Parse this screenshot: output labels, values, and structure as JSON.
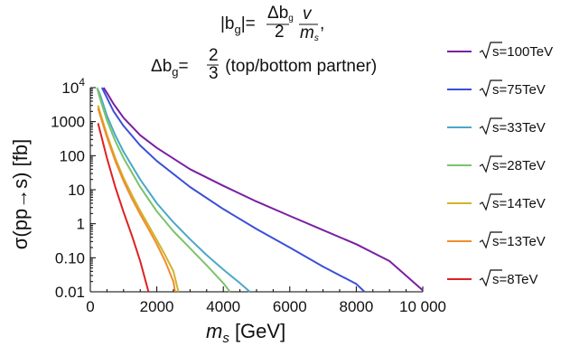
{
  "chart_data": {
    "type": "line",
    "title_line1": "|b_g|=Δb_g/2 · v/m_s ,",
    "title_line2": "Δb_g=2/3 (top/bottom partner)",
    "title_parts": {
      "abs_b": "|b",
      "sub_g": "g",
      "abs_close_eq": "|=",
      "frac1_num": "Δb",
      "frac1_num_sub": "g",
      "frac1_den": "2",
      "frac2_num": "v",
      "frac2_den": "m",
      "frac2_den_sub": "s",
      "comma": ",",
      "line2_delta": "Δb",
      "line2_sub": "g",
      "line2_eq": "=",
      "line2_num": "2",
      "line2_den": "3",
      "line2_rest": " (top/bottom partner)"
    },
    "xlabel": "m",
    "xlabel_sub": "s",
    "xlabel_unit": " [GeV]",
    "ylabel": "σ(pp→s) [fb]",
    "xlim": [
      0,
      10000
    ],
    "ylim": [
      0.01,
      10000
    ],
    "yscale": "log",
    "x_ticks": [
      "0",
      "2000",
      "4000",
      "6000",
      "8000",
      "10 000"
    ],
    "y_ticks": [
      {
        "value": 10000,
        "base": "10",
        "exp": "4"
      },
      {
        "value": 1000,
        "label": "1000"
      },
      {
        "value": 100,
        "label": "100"
      },
      {
        "value": 10,
        "label": "10"
      },
      {
        "value": 1,
        "label": "1"
      },
      {
        "value": 0.1,
        "label": "0.10"
      },
      {
        "value": 0.01,
        "label": "0.01"
      }
    ],
    "legend_position": "right",
    "series": [
      {
        "name": "100TeV",
        "color": "#7b1fa2",
        "x": [
          400,
          500,
          700,
          1000,
          1500,
          2000,
          3000,
          4000,
          5000,
          6000,
          7000,
          8000,
          9000,
          10000
        ],
        "y": [
          10000,
          7000,
          3300,
          1300,
          400,
          170,
          40,
          13,
          4.5,
          1.7,
          0.65,
          0.25,
          0.08,
          0.011
        ]
      },
      {
        "name": "75TeV",
        "color": "#3b4fd8",
        "x": [
          350,
          500,
          700,
          1000,
          1500,
          2000,
          3000,
          4000,
          5000,
          6000,
          7000,
          8000,
          8250
        ],
        "y": [
          10000,
          5000,
          2000,
          750,
          200,
          70,
          12,
          2.7,
          0.7,
          0.2,
          0.055,
          0.017,
          0.01
        ]
      },
      {
        "name": "33TeV",
        "color": "#4aa8c8",
        "x": [
          200,
          300,
          500,
          750,
          1000,
          1500,
          2000,
          2500,
          3000,
          3500,
          4000,
          4500,
          4800
        ],
        "y": [
          10000,
          6000,
          1500,
          400,
          130,
          20,
          4,
          1.1,
          0.35,
          0.12,
          0.045,
          0.018,
          0.01
        ]
      },
      {
        "name": "28TeV",
        "color": "#7cc36a",
        "x": [
          200,
          300,
          500,
          750,
          1000,
          1500,
          2000,
          2500,
          3000,
          3500,
          4000,
          4200
        ],
        "y": [
          10000,
          4500,
          1100,
          270,
          85,
          12,
          2.3,
          0.6,
          0.19,
          0.06,
          0.018,
          0.01
        ]
      },
      {
        "name": "14TeV",
        "color": "#cdb52a",
        "x": [
          230,
          300,
          500,
          750,
          1000,
          1250,
          1500,
          1750,
          2000,
          2250,
          2500,
          2650
        ],
        "y": [
          3000,
          1800,
          420,
          85,
          22,
          7,
          2.4,
          0.9,
          0.33,
          0.12,
          0.04,
          0.01
        ]
      },
      {
        "name": "13TeV",
        "color": "#f28b2e",
        "x": [
          230,
          300,
          500,
          750,
          1000,
          1250,
          1500,
          1750,
          2000,
          2250,
          2500,
          2550
        ],
        "y": [
          2500,
          1500,
          350,
          70,
          18,
          5.5,
          1.9,
          0.7,
          0.25,
          0.08,
          0.02,
          0.01
        ]
      },
      {
        "name": "8TeV",
        "color": "#e02020",
        "x": [
          230,
          300,
          500,
          750,
          1000,
          1250,
          1500,
          1750
        ],
        "y": [
          900,
          500,
          85,
          12,
          2.2,
          0.45,
          0.08,
          0.01
        ]
      }
    ],
    "legend_prefix": "s",
    "legend_eq": "="
  }
}
